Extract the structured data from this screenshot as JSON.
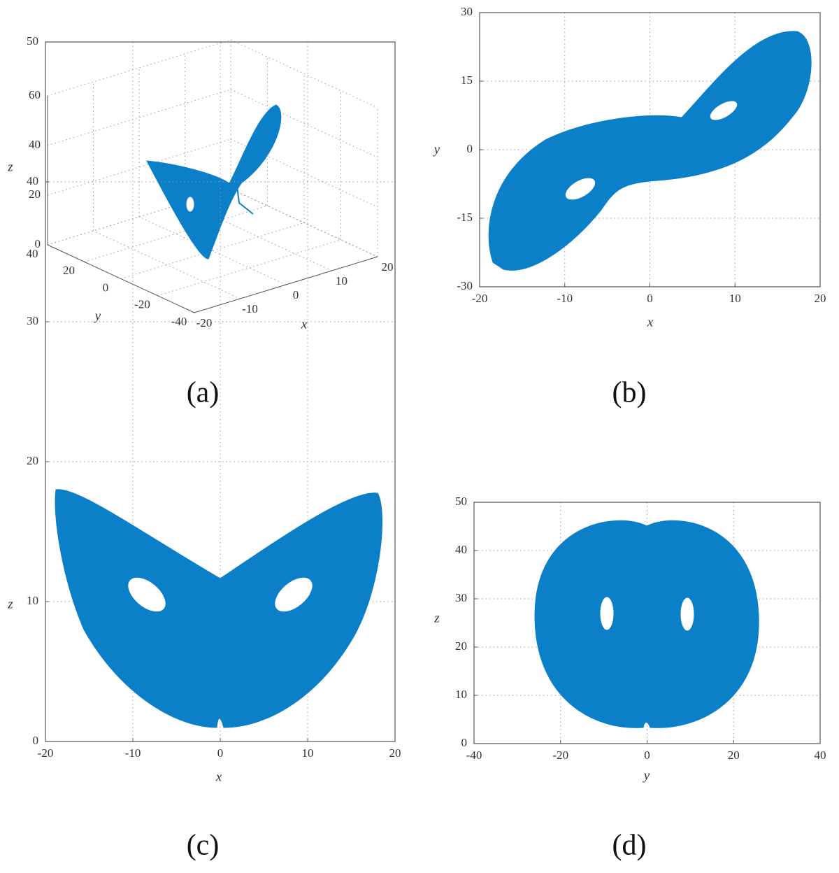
{
  "chart_data": [
    {
      "type": "line3d",
      "caption": "(a)",
      "xlabel": "x",
      "ylabel": "y",
      "zlabel": "z",
      "xlim": [
        -20,
        20
      ],
      "ylim": [
        -40,
        40
      ],
      "zlim": [
        0,
        60
      ],
      "xticks": [
        -20,
        -10,
        0,
        10,
        20
      ],
      "yticks": [
        -40,
        -20,
        0,
        20,
        40
      ],
      "zticks": [
        0,
        20,
        40,
        60
      ],
      "grid": true,
      "color": "#0b80c8"
    },
    {
      "type": "line",
      "caption": "(b)",
      "xlabel": "x",
      "ylabel": "y",
      "xlim": [
        -20,
        20
      ],
      "ylim": [
        -30,
        30
      ],
      "xticks": [
        -20,
        -10,
        0,
        10,
        20
      ],
      "yticks": [
        -30,
        -15,
        0,
        15,
        30
      ],
      "grid": true,
      "color": "#0b80c8"
    },
    {
      "type": "line",
      "caption": "(c)",
      "xlabel": "x",
      "ylabel": "z",
      "xlim": [
        -20,
        20
      ],
      "ylim": [
        0,
        50
      ],
      "xticks": [
        -20,
        -10,
        0,
        10,
        20
      ],
      "yticks": [
        0,
        10,
        20,
        30,
        40,
        50
      ],
      "grid": true,
      "color": "#0b80c8"
    },
    {
      "type": "line",
      "caption": "(d)",
      "xlabel": "y",
      "ylabel": "z",
      "xlim": [
        -40,
        40
      ],
      "ylim": [
        0,
        50
      ],
      "xticks": [
        -40,
        -20,
        0,
        20,
        40
      ],
      "yticks": [
        0,
        10,
        20,
        30,
        40,
        50
      ],
      "grid": true,
      "color": "#0b80c8"
    }
  ]
}
